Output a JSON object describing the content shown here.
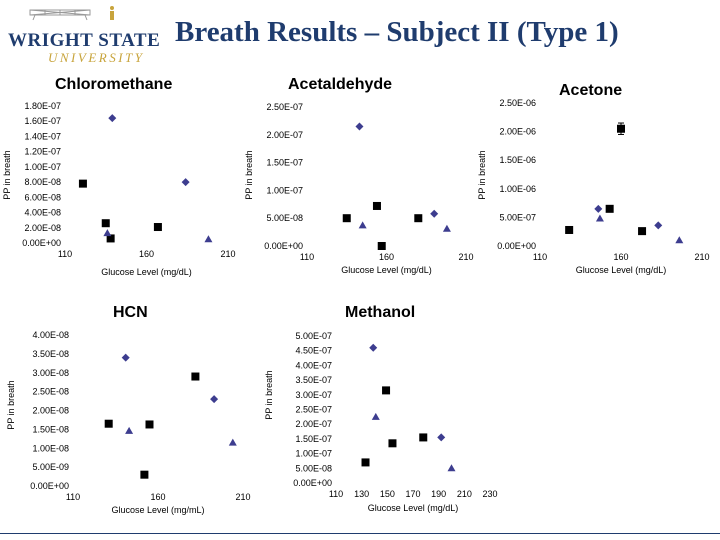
{
  "header": {
    "title": "Breath Results – Subject II (Type 1)",
    "logo_top": "WRIGHT STATE",
    "logo_bottom": "UNIVERSITY"
  },
  "colors": {
    "diamond": "#3d3d8f",
    "square": "#000000",
    "triangle": "#3d3d8f",
    "title": "#1f3c6e",
    "gold": "#c8a43c"
  },
  "chart_data": [
    {
      "type": "scatter",
      "title": "Chloromethane",
      "xlabel": "Glucose Level (mg/dL)",
      "ylabel": "PP in breath",
      "xlim": [
        110,
        210
      ],
      "ylim": [
        0,
        1.8e-07
      ],
      "x_ticks": [
        "110",
        "160",
        "210"
      ],
      "y_ticks": [
        "0.00E+00",
        "2.00E-08",
        "4.00E-08",
        "6.00E-08",
        "8.00E-08",
        "1.00E-07",
        "1.20E-07",
        "1.40E-07",
        "1.60E-07",
        "1.80E-07"
      ],
      "series": [
        {
          "marker": "diamond",
          "points": [
            [
              139,
              1.64e-07
            ],
            [
              184,
              8e-08
            ]
          ]
        },
        {
          "marker": "square",
          "points": [
            [
              121,
              7.8e-08
            ],
            [
              135,
              2.6e-08
            ],
            [
              138,
              6e-09
            ],
            [
              167,
              2.1e-08
            ]
          ]
        },
        {
          "marker": "triangle",
          "points": [
            [
              136,
              1.3e-08
            ],
            [
              198,
              5e-09
            ]
          ]
        }
      ]
    },
    {
      "type": "scatter",
      "title": "Acetaldehyde",
      "xlabel": "Glucose Level (mg/dL)",
      "ylabel": "PP in breath",
      "xlim": [
        110,
        210
      ],
      "ylim": [
        0,
        2.5e-07
      ],
      "x_ticks": [
        "110",
        "160",
        "210"
      ],
      "y_ticks": [
        "0.00E+00",
        "5.00E-08",
        "1.00E-07",
        "1.50E-07",
        "2.00E-07",
        "2.50E-07"
      ],
      "series": [
        {
          "marker": "diamond",
          "points": [
            [
              143,
              2.15e-07
            ],
            [
              190,
              5.8e-08
            ]
          ]
        },
        {
          "marker": "square",
          "points": [
            [
              135,
              5e-08
            ],
            [
              154,
              7.2e-08
            ],
            [
              157,
              0
            ],
            [
              180,
              5e-08
            ]
          ]
        },
        {
          "marker": "triangle",
          "points": [
            [
              145,
              3.7e-08
            ],
            [
              198,
              3.1e-08
            ]
          ]
        }
      ]
    },
    {
      "type": "scatter",
      "title": "Acetone",
      "xlabel": "Glucose Level (mg/dL)",
      "ylabel": "PP in breath",
      "xlim": [
        110,
        210
      ],
      "ylim": [
        0,
        2.5e-06
      ],
      "x_ticks": [
        "110",
        "160",
        "210"
      ],
      "y_ticks": [
        "0.00E+00",
        "5.00E-07",
        "1.00E-06",
        "1.50E-06",
        "2.00E-06",
        "2.50E-06"
      ],
      "series": [
        {
          "marker": "diamond",
          "points": [
            [
              146,
              6.5e-07
            ],
            [
              183,
              3.6e-07
            ]
          ]
        },
        {
          "marker": "square",
          "points": [
            [
              128,
              2.8e-07
            ],
            [
              153,
              6.5e-07
            ],
            [
              160,
              2.05e-06
            ],
            [
              173,
              2.6e-07
            ]
          ]
        },
        {
          "marker": "triangle",
          "points": [
            [
              147,
              4.8e-07
            ],
            [
              196,
              1e-07
            ]
          ]
        }
      ],
      "error_bar": {
        "x": 160,
        "y": 2.05e-06,
        "err": 1e-07
      }
    },
    {
      "type": "scatter",
      "title": "HCN",
      "xlabel": "Glucose Level (mg/mL)",
      "ylabel": "PP in breath",
      "xlim": [
        110,
        210
      ],
      "ylim": [
        0,
        4e-08
      ],
      "x_ticks": [
        "110",
        "160",
        "210"
      ],
      "y_ticks": [
        "0.00E+00",
        "5.00E-09",
        "1.00E-08",
        "1.50E-08",
        "2.00E-08",
        "2.50E-08",
        "3.00E-08",
        "3.50E-08",
        "4.00E-08"
      ],
      "series": [
        {
          "marker": "diamond",
          "points": [
            [
              141,
              3.4e-08
            ],
            [
              193,
              2.3e-08
            ]
          ]
        },
        {
          "marker": "square",
          "points": [
            [
              131,
              1.65e-08
            ],
            [
              152,
              3e-09
            ],
            [
              155,
              1.63e-08
            ],
            [
              182,
              2.9e-08
            ]
          ]
        },
        {
          "marker": "triangle",
          "points": [
            [
              143,
              1.46e-08
            ],
            [
              204,
              1.15e-08
            ]
          ]
        }
      ]
    },
    {
      "type": "scatter",
      "title": "Methanol",
      "xlabel": "Glucose Level (mg/dL)",
      "ylabel": "PP in breath",
      "xlim": [
        110,
        230
      ],
      "ylim": [
        0,
        5e-07
      ],
      "x_ticks": [
        "110",
        "130",
        "150",
        "170",
        "190",
        "210",
        "230"
      ],
      "y_ticks": [
        "0.00E+00",
        "5.00E-08",
        "1.00E-07",
        "1.50E-07",
        "2.00E-07",
        "2.50E-07",
        "3.00E-07",
        "3.50E-07",
        "4.00E-07",
        "4.50E-07",
        "5.00E-07"
      ],
      "series": [
        {
          "marker": "diamond",
          "points": [
            [
              139,
              4.6e-07
            ],
            [
              192,
              1.55e-07
            ]
          ]
        },
        {
          "marker": "square",
          "points": [
            [
              133,
              7e-08
            ],
            [
              149,
              3.15e-07
            ],
            [
              154,
              1.35e-07
            ],
            [
              178,
              1.55e-07
            ]
          ]
        },
        {
          "marker": "triangle",
          "points": [
            [
              141,
              2.25e-07
            ],
            [
              200,
              5e-08
            ]
          ]
        }
      ]
    }
  ]
}
